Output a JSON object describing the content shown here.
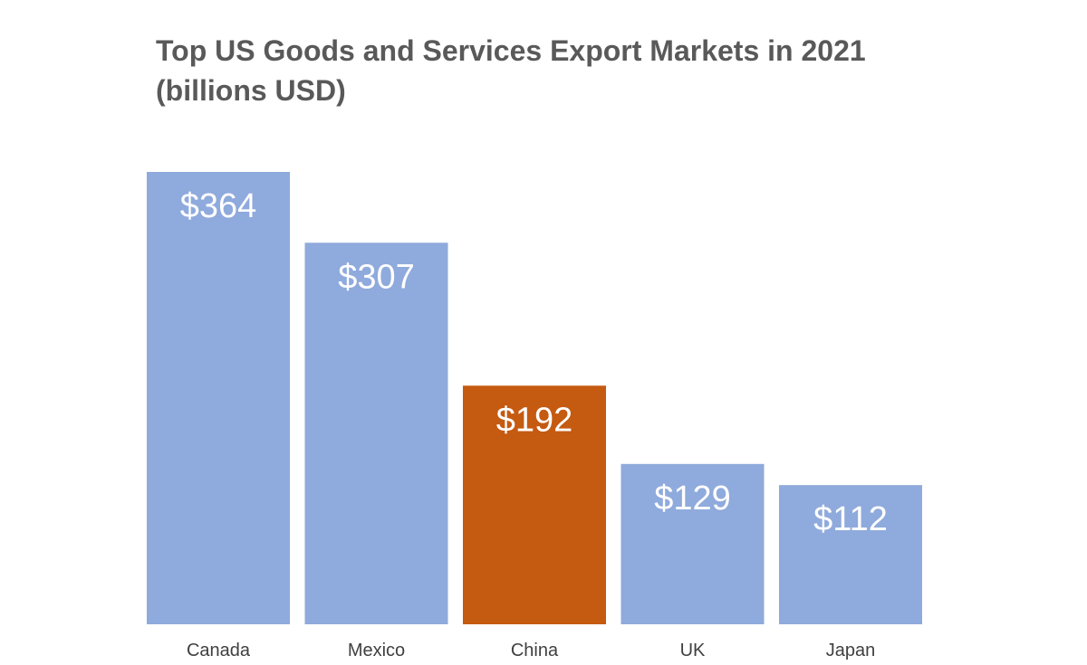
{
  "chart_data": {
    "type": "bar",
    "title": "Top US Goods and Services Export Markets in 2021",
    "subtitle": "(billions USD)",
    "categories": [
      "Canada",
      "Mexico",
      "China",
      "UK",
      "Japan"
    ],
    "values": [
      364,
      307,
      192,
      129,
      112
    ],
    "data_labels": [
      "$364",
      "$307",
      "$192",
      "$129",
      "$112"
    ],
    "highlight_category": "China",
    "ylim": [
      0,
      364
    ],
    "grid": false,
    "legend": "none",
    "colors": {
      "default_bar": "#8faadc",
      "highlight_bar": "#c55a11",
      "label_text": "#ffffff",
      "title_text": "#595959",
      "axis_text": "#404040"
    }
  }
}
